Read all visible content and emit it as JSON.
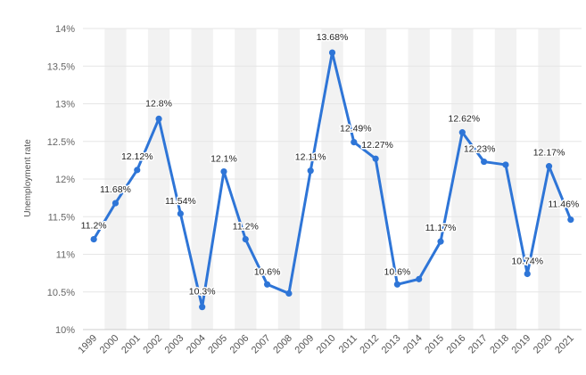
{
  "chart_data": {
    "type": "line",
    "title": "",
    "xlabel": "",
    "ylabel": "Unemployment rate",
    "ylim": [
      10,
      14
    ],
    "y_ticks": [
      10,
      10.5,
      11,
      11.5,
      12,
      12.5,
      13,
      13.5,
      14
    ],
    "y_tick_suffix": "%",
    "y_tick_labels": [
      "10%",
      "10.5%",
      "11%",
      "11.5%",
      "12%",
      "12.5%",
      "13%",
      "13.5%",
      "14%"
    ],
    "categories": [
      "1999",
      "2000",
      "2001",
      "2002",
      "2003",
      "2004",
      "2005",
      "2006",
      "2007",
      "2008",
      "2009",
      "2010",
      "2011",
      "2012",
      "2013",
      "2014",
      "2015",
      "2016",
      "2017",
      "2018",
      "2019",
      "2020",
      "2021"
    ],
    "series": [
      {
        "name": "Unemployment rate",
        "values": [
          11.2,
          11.68,
          12.12,
          12.8,
          11.54,
          10.3,
          12.1,
          11.2,
          10.6,
          10.48,
          12.11,
          13.68,
          12.49,
          12.27,
          10.6,
          10.67,
          11.17,
          12.62,
          12.23,
          12.19,
          10.74,
          12.17,
          11.46
        ],
        "labels": [
          "11.2%",
          "11.68%",
          "12.12%",
          "12.8%",
          "11.54%",
          "10.3%",
          "12.1%",
          "11.2%",
          "10.6%",
          "",
          "12.11%",
          "13.68%",
          "12.49%",
          "12.27%",
          "10.6%",
          "",
          "11.17%",
          "12.62%",
          "12.23%",
          "",
          "10.74%",
          "12.17%",
          "11.46%"
        ]
      }
    ],
    "grid": true,
    "alternating_column_shading": true,
    "colors": {
      "line": "#2e75d7",
      "gridline": "#e6e6e6",
      "band": "#f2f2f2",
      "axis_line": "#cccccc"
    }
  }
}
